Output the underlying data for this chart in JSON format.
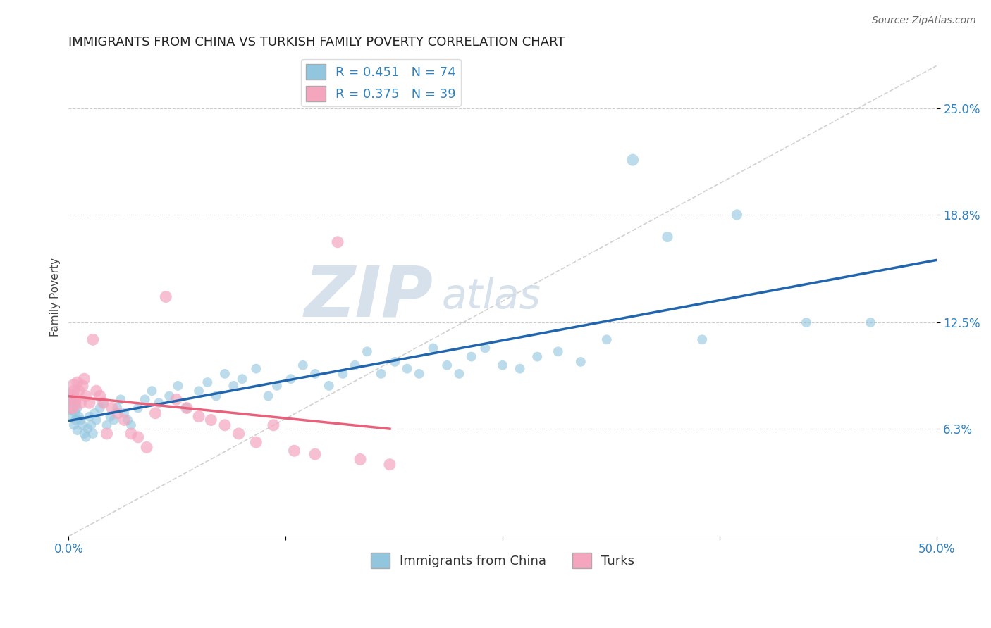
{
  "title": "IMMIGRANTS FROM CHINA VS TURKISH FAMILY POVERTY CORRELATION CHART",
  "source": "Source: ZipAtlas.com",
  "ylabel": "Family Poverty",
  "xlim": [
    0.0,
    0.5
  ],
  "ylim": [
    0.0,
    0.28
  ],
  "yticks": [
    0.063,
    0.125,
    0.188,
    0.25
  ],
  "ytick_labels": [
    "6.3%",
    "12.5%",
    "18.8%",
    "25.0%"
  ],
  "legend1_label": "R = 0.451   N = 74",
  "legend2_label": "R = 0.375   N = 39",
  "legend_label1": "Immigrants from China",
  "legend_label2": "Turks",
  "blue_color": "#92c5de",
  "pink_color": "#f4a6bf",
  "blue_line_color": "#2166ac",
  "pink_line_color": "#e8607a",
  "r_color": "#3182bd",
  "background_color": "#ffffff",
  "china_x": [
    0.001,
    0.002,
    0.002,
    0.003,
    0.003,
    0.004,
    0.004,
    0.005,
    0.005,
    0.006,
    0.007,
    0.008,
    0.009,
    0.01,
    0.011,
    0.012,
    0.013,
    0.014,
    0.015,
    0.016,
    0.018,
    0.02,
    0.022,
    0.024,
    0.026,
    0.028,
    0.03,
    0.032,
    0.034,
    0.036,
    0.04,
    0.044,
    0.048,
    0.052,
    0.058,
    0.063,
    0.068,
    0.075,
    0.08,
    0.085,
    0.09,
    0.095,
    0.1,
    0.108,
    0.115,
    0.12,
    0.128,
    0.135,
    0.142,
    0.15,
    0.158,
    0.165,
    0.172,
    0.18,
    0.188,
    0.195,
    0.202,
    0.21,
    0.218,
    0.225,
    0.232,
    0.24,
    0.25,
    0.26,
    0.27,
    0.282,
    0.295,
    0.31,
    0.325,
    0.345,
    0.365,
    0.385,
    0.425,
    0.462
  ],
  "china_y": [
    0.075,
    0.07,
    0.08,
    0.065,
    0.078,
    0.072,
    0.068,
    0.075,
    0.062,
    0.07,
    0.068,
    0.065,
    0.06,
    0.058,
    0.063,
    0.07,
    0.065,
    0.06,
    0.072,
    0.068,
    0.075,
    0.078,
    0.065,
    0.07,
    0.068,
    0.075,
    0.08,
    0.072,
    0.068,
    0.065,
    0.075,
    0.08,
    0.085,
    0.078,
    0.082,
    0.088,
    0.075,
    0.085,
    0.09,
    0.082,
    0.095,
    0.088,
    0.092,
    0.098,
    0.082,
    0.088,
    0.092,
    0.1,
    0.095,
    0.088,
    0.095,
    0.1,
    0.108,
    0.095,
    0.102,
    0.098,
    0.095,
    0.11,
    0.1,
    0.095,
    0.105,
    0.11,
    0.1,
    0.098,
    0.105,
    0.108,
    0.102,
    0.115,
    0.22,
    0.175,
    0.115,
    0.188,
    0.125,
    0.125
  ],
  "china_sizes": [
    200,
    120,
    120,
    100,
    100,
    100,
    100,
    100,
    100,
    100,
    100,
    100,
    100,
    100,
    100,
    100,
    100,
    100,
    100,
    100,
    100,
    100,
    100,
    100,
    100,
    100,
    100,
    100,
    100,
    100,
    100,
    100,
    100,
    100,
    100,
    100,
    100,
    100,
    100,
    100,
    100,
    100,
    100,
    100,
    100,
    100,
    100,
    100,
    100,
    100,
    100,
    100,
    100,
    100,
    100,
    100,
    100,
    100,
    100,
    100,
    100,
    100,
    100,
    100,
    100,
    100,
    100,
    100,
    150,
    120,
    100,
    120,
    100,
    100
  ],
  "turk_x": [
    0.001,
    0.002,
    0.002,
    0.003,
    0.003,
    0.004,
    0.005,
    0.006,
    0.007,
    0.008,
    0.009,
    0.01,
    0.012,
    0.014,
    0.016,
    0.018,
    0.02,
    0.022,
    0.025,
    0.028,
    0.032,
    0.036,
    0.04,
    0.045,
    0.05,
    0.056,
    0.062,
    0.068,
    0.075,
    0.082,
    0.09,
    0.098,
    0.108,
    0.118,
    0.13,
    0.142,
    0.155,
    0.168,
    0.185
  ],
  "turk_y": [
    0.078,
    0.082,
    0.075,
    0.085,
    0.088,
    0.08,
    0.09,
    0.085,
    0.078,
    0.088,
    0.092,
    0.082,
    0.078,
    0.115,
    0.085,
    0.082,
    0.078,
    0.06,
    0.075,
    0.072,
    0.068,
    0.06,
    0.058,
    0.052,
    0.072,
    0.14,
    0.08,
    0.075,
    0.07,
    0.068,
    0.065,
    0.06,
    0.055,
    0.065,
    0.05,
    0.048,
    0.172,
    0.045,
    0.042
  ],
  "turk_sizes": [
    500,
    200,
    150,
    150,
    200,
    150,
    150,
    150,
    150,
    150,
    150,
    150,
    150,
    150,
    150,
    150,
    150,
    150,
    150,
    150,
    150,
    150,
    150,
    150,
    150,
    150,
    150,
    150,
    150,
    150,
    150,
    150,
    150,
    150,
    150,
    150,
    150,
    150,
    150
  ],
  "title_fontsize": 13,
  "axis_fontsize": 11,
  "tick_fontsize": 12
}
